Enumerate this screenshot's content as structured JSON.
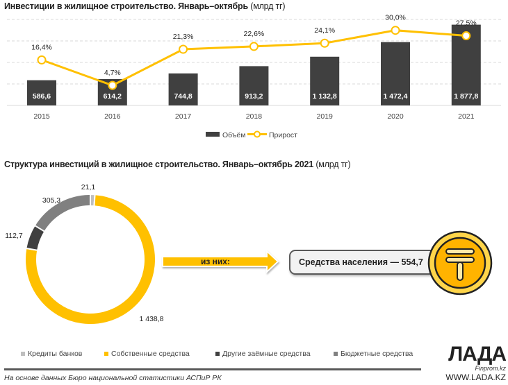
{
  "chart_data": [
    {
      "type": "bar+line",
      "title": "Инвестиции в жилищное строительство. Январь–октябрь",
      "unit": "(млрд тг)",
      "categories": [
        "2015",
        "2016",
        "2017",
        "2018",
        "2019",
        "2020",
        "2021"
      ],
      "series": [
        {
          "name": "Объём",
          "type": "bar",
          "color": "#404040",
          "values": [
            586.6,
            614.2,
            744.8,
            913.2,
            1132.8,
            1472.4,
            1877.8
          ],
          "labels": [
            "586,6",
            "614,2",
            "744,8",
            "913,2",
            "1 132,8",
            "1 472,4",
            "1 877,8"
          ]
        },
        {
          "name": "Прирост",
          "type": "line",
          "color": "#FFC000",
          "values": [
            16.4,
            4.7,
            21.3,
            22.6,
            24.1,
            30.0,
            27.5
          ],
          "labels": [
            "16,4%",
            "4,7%",
            "21,3%",
            "22,6%",
            "24,1%",
            "30,0%",
            "27,5%"
          ]
        }
      ],
      "ylim": [
        0,
        2000
      ],
      "y2lim": [
        -4.5,
        35
      ],
      "grid": true,
      "legend": "bottom"
    },
    {
      "type": "pie",
      "title": "Структура инвестиций в жилищное строительство. Январь–октябрь 2021",
      "unit": "(млрд тг)",
      "slices": [
        {
          "name": "Кредиты банков",
          "value": 21.1,
          "label": "21,1",
          "color": "#BFBFBF"
        },
        {
          "name": "Собственные средства",
          "value": 1438.8,
          "label": "1 438,8",
          "color": "#FFC000"
        },
        {
          "name": "Другие заёмные средства",
          "value": 112.7,
          "label": "112,7",
          "color": "#404040"
        },
        {
          "name": "Бюджетные средства",
          "value": 305.3,
          "label": "305,3",
          "color": "#808080"
        }
      ],
      "legend": "bottom"
    }
  ],
  "callout": {
    "arrow_text": "из них:",
    "box_text": "Средства населения — 554,7",
    "coin_icon": "tenge-coin-icon"
  },
  "source": "На основе данных Бюро национальной статистики АСПиР РК",
  "watermark": {
    "logo": "ЛАДА",
    "sub": "Finprom.kz",
    "url": "WWW.LADA.KZ"
  }
}
